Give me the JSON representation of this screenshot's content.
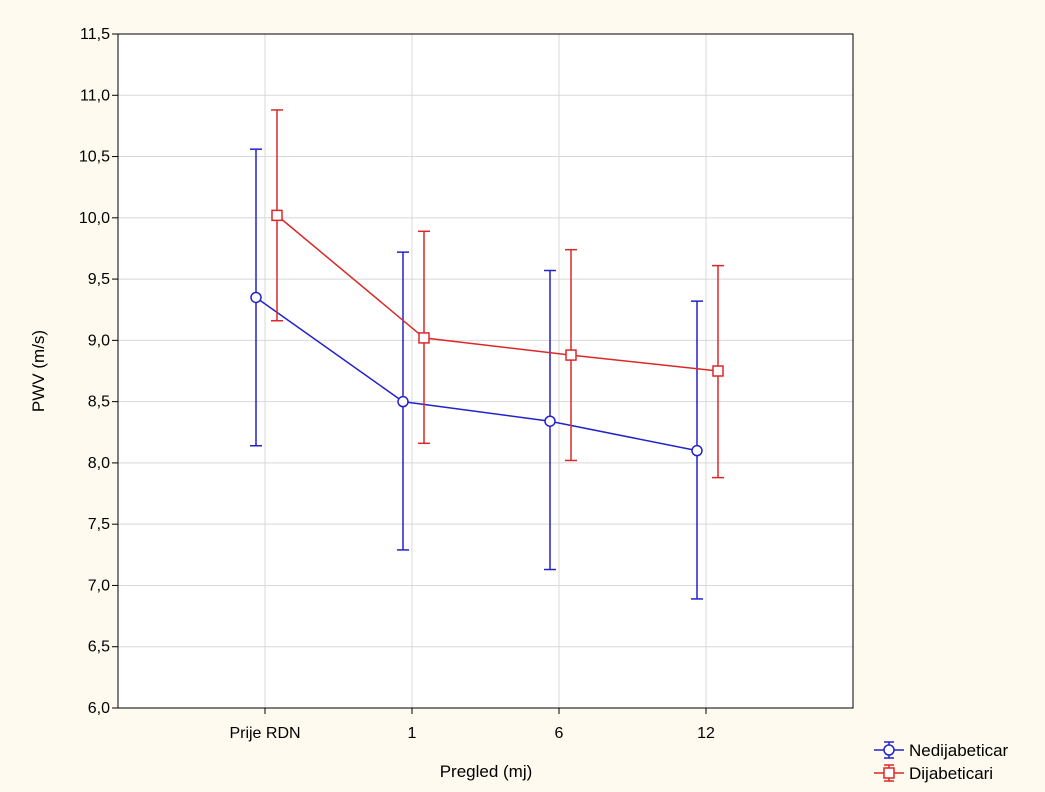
{
  "chart_data": {
    "type": "line",
    "title": "",
    "xlabel": "Pregled (mj)",
    "ylabel": "PWV (m/s)",
    "categories": [
      "Prije RDN",
      "1",
      "6",
      "12"
    ],
    "ylim": [
      6.0,
      11.5
    ],
    "yticks": [
      "6,0",
      "6,5",
      "7,0",
      "7,5",
      "8,0",
      "8,5",
      "9,0",
      "9,5",
      "10,0",
      "10,5",
      "11,0",
      "11,5"
    ],
    "grid": true,
    "legend_position": "bottom-right",
    "error_bars": true,
    "series": [
      {
        "name": "Nedijabeticar",
        "color": "#2323c8",
        "marker": "circle",
        "values": [
          9.35,
          8.5,
          8.34,
          8.1
        ],
        "lower": [
          8.14,
          7.29,
          7.13,
          6.89
        ],
        "upper": [
          10.56,
          9.72,
          9.57,
          9.32
        ]
      },
      {
        "name": "Dijabeticari",
        "color": "#dc2828",
        "marker": "square",
        "values": [
          10.02,
          9.02,
          8.88,
          8.75
        ],
        "lower": [
          9.16,
          8.16,
          8.02,
          7.88
        ],
        "upper": [
          10.88,
          9.89,
          9.74,
          9.61
        ]
      }
    ]
  }
}
